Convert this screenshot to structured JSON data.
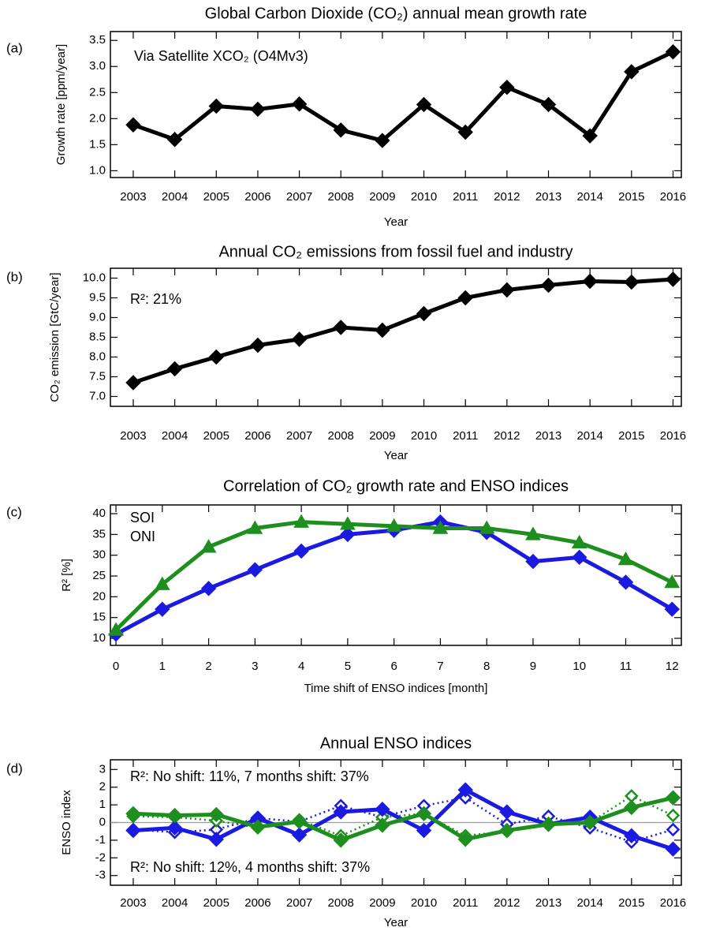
{
  "chart_data": [
    {
      "type": "line",
      "panel_label": "(a)",
      "title": "Global Carbon Dioxide (CO₂) annual mean growth rate",
      "x_label": "Year",
      "y_label": "Growth rate [ppm/year]",
      "x": [
        2003,
        2004,
        2005,
        2006,
        2007,
        2008,
        2009,
        2010,
        2011,
        2012,
        2013,
        2014,
        2015,
        2016
      ],
      "xlim": [
        2002.45,
        2016.2
      ],
      "xticks": [
        2003,
        2004,
        2005,
        2006,
        2007,
        2008,
        2009,
        2010,
        2011,
        2012,
        2013,
        2014,
        2015,
        2016
      ],
      "ylim": [
        0.87,
        3.67
      ],
      "yticks": [
        {
          "value": 1,
          "label": "1.0"
        },
        1.5,
        {
          "value": 2,
          "label": "2.0"
        },
        2.5,
        {
          "value": 3,
          "label": "3.0"
        },
        3.5
      ],
      "annotations": [
        {
          "text": "Via Satellite XCO₂ (O4Mv3)",
          "color": "#000000"
        }
      ],
      "series": [
        {
          "color": "#000000",
          "marker": "diamond",
          "marker_filled": true,
          "line_style": "solid",
          "values": [
            1.88,
            1.6,
            2.24,
            2.18,
            2.28,
            1.78,
            1.58,
            2.27,
            1.74,
            2.6,
            2.27,
            1.67,
            2.9,
            3.28
          ]
        }
      ]
    },
    {
      "type": "line",
      "panel_label": "(b)",
      "title": "Annual CO₂ emissions from fossil fuel and industry",
      "x_label": "Year",
      "y_label": "CO₂ emission [GtC/year]",
      "x": [
        2003,
        2004,
        2005,
        2006,
        2007,
        2008,
        2009,
        2010,
        2011,
        2012,
        2013,
        2014,
        2015,
        2016
      ],
      "xlim": [
        2002.45,
        2016.2
      ],
      "xticks": [
        2003,
        2004,
        2005,
        2006,
        2007,
        2008,
        2009,
        2010,
        2011,
        2012,
        2013,
        2014,
        2015,
        2016
      ],
      "ylim": [
        6.75,
        10.25
      ],
      "yticks": [
        {
          "value": 7,
          "label": "7.0"
        },
        7.5,
        {
          "value": 8,
          "label": "8.0"
        },
        8.5,
        {
          "value": 9,
          "label": "9.0"
        },
        9.5,
        {
          "value": 10,
          "label": "10.0"
        }
      ],
      "annotations": [
        {
          "text": "R²: 21%",
          "color": "#000000"
        }
      ],
      "series": [
        {
          "color": "#000000",
          "marker": "diamond",
          "marker_filled": true,
          "line_style": "solid",
          "values": [
            7.35,
            7.7,
            8.0,
            8.3,
            8.45,
            8.75,
            8.68,
            9.1,
            9.5,
            9.7,
            9.82,
            9.92,
            9.9,
            9.97
          ]
        }
      ]
    },
    {
      "type": "line",
      "panel_label": "(c)",
      "title": "Correlation of CO₂ growth rate and ENSO indices",
      "x_label": "Time shift of ENSO indices [month]",
      "y_label": "R² [%]",
      "x": [
        0,
        1,
        2,
        3,
        4,
        5,
        6,
        7,
        8,
        9,
        10,
        11,
        12
      ],
      "xlim": [
        -0.12,
        12.2
      ],
      "xticks": [
        0,
        1,
        2,
        3,
        4,
        5,
        6,
        7,
        8,
        9,
        10,
        11,
        12
      ],
      "ylim": [
        8.3,
        42.1
      ],
      "yticks": [
        10,
        15,
        20,
        25,
        30,
        35,
        40
      ],
      "series": [
        {
          "name": "SOI",
          "color": "#1a1ae0",
          "marker": "diamond",
          "marker_filled": true,
          "line_style": "solid",
          "values": [
            11,
            17,
            22,
            26.5,
            31,
            35,
            36,
            38,
            35.5,
            28.5,
            29.5,
            23.5,
            17
          ]
        },
        {
          "name": "ONI",
          "color": "#1e8f1e",
          "marker": "triangle",
          "marker_filled": true,
          "line_style": "solid",
          "values": [
            12,
            23,
            32,
            36.5,
            38,
            37.5,
            37,
            36.5,
            36.5,
            35,
            33,
            29,
            23.5
          ]
        }
      ]
    },
    {
      "type": "line",
      "panel_label": "(d)",
      "title": "Annual ENSO indices",
      "x_label": "Year",
      "y_label": "ENSO index",
      "zero_line": true,
      "x": [
        2003,
        2004,
        2005,
        2006,
        2007,
        2008,
        2009,
        2010,
        2011,
        2012,
        2013,
        2014,
        2015,
        2016
      ],
      "xlim": [
        2002.45,
        2016.2
      ],
      "xticks": [
        2003,
        2004,
        2005,
        2006,
        2007,
        2008,
        2009,
        2010,
        2011,
        2012,
        2013,
        2014,
        2015,
        2016
      ],
      "ylim": [
        -3.55,
        3.55
      ],
      "yticks": [
        -3,
        -2,
        -1,
        0,
        1,
        2,
        3
      ],
      "annotations": [
        {
          "text": "R²: No shift: 11%, 7 months shift: 37%",
          "color": "#1a1ae0"
        },
        {
          "text": "R²: No shift: 12%, 4 months shift: 37%",
          "color": "#1e8f1e"
        }
      ],
      "series": [
        {
          "color": "#1a1ae0",
          "marker": "diamond",
          "marker_filled": false,
          "line_style": "dotted",
          "values": [
            -0.4,
            -0.55,
            -0.4,
            0.25,
            0.05,
            0.95,
            0.3,
            0.95,
            1.4,
            -0.1,
            0.35,
            -0.3,
            -1.1,
            -0.4
          ]
        },
        {
          "color": "#1e8f1e",
          "marker": "diamond",
          "marker_filled": false,
          "line_style": "dotted",
          "values": [
            0.35,
            0.3,
            0.1,
            -0.3,
            0.15,
            -0.75,
            0.3,
            0.5,
            -0.75,
            -0.5,
            -0.1,
            0.0,
            1.5,
            0.4
          ]
        },
        {
          "color": "#1a1ae0",
          "marker": "diamond",
          "marker_filled": true,
          "line_style": "solid",
          "values": [
            -0.45,
            -0.3,
            -0.95,
            0.25,
            -0.7,
            0.6,
            0.75,
            -0.45,
            1.85,
            0.6,
            -0.1,
            0.3,
            -0.75,
            -1.5
          ]
        },
        {
          "color": "#1e8f1e",
          "marker": "diamond",
          "marker_filled": true,
          "line_style": "solid",
          "values": [
            0.5,
            0.4,
            0.45,
            -0.25,
            0.05,
            -1.0,
            -0.15,
            0.5,
            -0.95,
            -0.45,
            -0.1,
            0.0,
            0.85,
            1.4
          ]
        }
      ]
    }
  ]
}
